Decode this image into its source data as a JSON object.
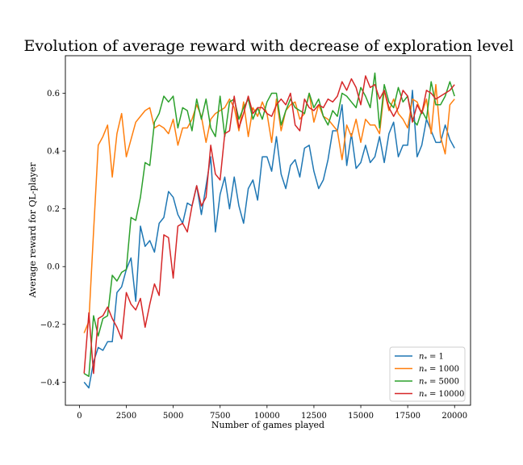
{
  "chart_data": {
    "type": "line",
    "title": "Evolution of average reward with decrease of exploration level",
    "xlabel": "Number of games played",
    "ylabel": "Average reward for QL-player",
    "xlim": [
      -750,
      20850
    ],
    "ylim": [
      -0.48,
      0.73
    ],
    "xticks": [
      0,
      2500,
      5000,
      7500,
      10000,
      12500,
      15000,
      17500,
      20000
    ],
    "xtick_labels": [
      "0",
      "2500",
      "5000",
      "7500",
      "10000",
      "12500",
      "15000",
      "17500",
      "20000"
    ],
    "yticks": [
      -0.4,
      -0.2,
      0.0,
      0.2,
      0.4,
      0.6
    ],
    "ytick_labels": [
      "−0.4",
      "−0.2",
      "0.0",
      "0.2",
      "0.4",
      "0.6"
    ],
    "grid": false,
    "legend_position": "lower right",
    "x": [
      250,
      500,
      750,
      1000,
      1250,
      1500,
      1750,
      2000,
      2250,
      2500,
      2750,
      3000,
      3250,
      3500,
      3750,
      4000,
      4250,
      4500,
      4750,
      5000,
      5250,
      5500,
      5750,
      6000,
      6250,
      6500,
      6750,
      7000,
      7250,
      7500,
      7750,
      8000,
      8250,
      8500,
      8750,
      9000,
      9250,
      9500,
      9750,
      10000,
      10250,
      10500,
      10750,
      11000,
      11250,
      11500,
      11750,
      12000,
      12250,
      12500,
      12750,
      13000,
      13250,
      13500,
      13750,
      14000,
      14250,
      14500,
      14750,
      15000,
      15250,
      15500,
      15750,
      16000,
      16250,
      16500,
      16750,
      17000,
      17250,
      17500,
      17750,
      18000,
      18250,
      18500,
      18750,
      19000,
      19250,
      19500,
      19750,
      20000
    ],
    "series": [
      {
        "name": "n_* = 1",
        "color": "#1f77b4",
        "values": [
          -0.4,
          -0.42,
          -0.33,
          -0.28,
          -0.29,
          -0.26,
          -0.26,
          -0.09,
          -0.07,
          -0.01,
          0.03,
          -0.12,
          0.14,
          0.07,
          0.09,
          0.05,
          0.15,
          0.17,
          0.26,
          0.24,
          0.18,
          0.15,
          0.22,
          0.21,
          0.28,
          0.18,
          0.28,
          0.38,
          0.12,
          0.25,
          0.31,
          0.2,
          0.31,
          0.21,
          0.15,
          0.27,
          0.3,
          0.23,
          0.38,
          0.38,
          0.33,
          0.45,
          0.32,
          0.27,
          0.35,
          0.37,
          0.31,
          0.41,
          0.42,
          0.33,
          0.27,
          0.3,
          0.37,
          0.47,
          0.47,
          0.56,
          0.35,
          0.46,
          0.34,
          0.36,
          0.42,
          0.36,
          0.38,
          0.45,
          0.36,
          0.46,
          0.5,
          0.38,
          0.42,
          0.42,
          0.61,
          0.38,
          0.42,
          0.51,
          0.47,
          0.43,
          0.43,
          0.49,
          0.44,
          0.41
        ]
      },
      {
        "name": "n_* = 1000",
        "color": "#ff7f0e",
        "values": [
          -0.23,
          -0.19,
          0.12,
          0.42,
          0.45,
          0.49,
          0.31,
          0.46,
          0.53,
          0.38,
          0.44,
          0.5,
          0.52,
          0.54,
          0.55,
          0.48,
          0.49,
          0.48,
          0.46,
          0.51,
          0.42,
          0.48,
          0.48,
          0.51,
          0.56,
          0.52,
          0.43,
          0.51,
          0.53,
          0.54,
          0.55,
          0.58,
          0.55,
          0.47,
          0.57,
          0.45,
          0.55,
          0.52,
          0.57,
          0.53,
          0.43,
          0.58,
          0.47,
          0.54,
          0.56,
          0.57,
          0.51,
          0.53,
          0.6,
          0.5,
          0.56,
          0.52,
          0.51,
          0.49,
          0.47,
          0.37,
          0.49,
          0.45,
          0.51,
          0.43,
          0.51,
          0.49,
          0.49,
          0.46,
          0.61,
          0.54,
          0.58,
          0.53,
          0.51,
          0.48,
          0.58,
          0.57,
          0.53,
          0.58,
          0.46,
          0.63,
          0.45,
          0.39,
          0.56,
          0.58
        ]
      },
      {
        "name": "n_* = 5000",
        "color": "#2ca02c",
        "values": [
          -0.37,
          -0.38,
          -0.17,
          -0.24,
          -0.18,
          -0.17,
          -0.03,
          -0.05,
          -0.02,
          -0.01,
          0.17,
          0.16,
          0.24,
          0.36,
          0.35,
          0.5,
          0.53,
          0.59,
          0.57,
          0.59,
          0.48,
          0.55,
          0.54,
          0.47,
          0.58,
          0.51,
          0.58,
          0.48,
          0.45,
          0.59,
          0.45,
          0.57,
          0.58,
          0.51,
          0.55,
          0.58,
          0.51,
          0.55,
          0.51,
          0.57,
          0.6,
          0.6,
          0.49,
          0.54,
          0.58,
          0.55,
          0.54,
          0.53,
          0.6,
          0.55,
          0.58,
          0.52,
          0.49,
          0.54,
          0.52,
          0.6,
          0.59,
          0.57,
          0.55,
          0.62,
          0.59,
          0.55,
          0.67,
          0.48,
          0.63,
          0.57,
          0.55,
          0.62,
          0.57,
          0.59,
          0.51,
          0.49,
          0.54,
          0.51,
          0.64,
          0.56,
          0.56,
          0.59,
          0.64,
          0.59
        ]
      },
      {
        "name": "n_* = 10000",
        "color": "#d62728",
        "values": [
          -0.37,
          -0.16,
          -0.37,
          -0.18,
          -0.17,
          -0.14,
          -0.18,
          -0.21,
          -0.25,
          -0.09,
          -0.13,
          -0.15,
          -0.11,
          -0.21,
          -0.13,
          -0.06,
          -0.1,
          0.11,
          0.1,
          -0.04,
          0.14,
          0.15,
          0.12,
          0.21,
          0.28,
          0.21,
          0.24,
          0.42,
          0.32,
          0.3,
          0.46,
          0.47,
          0.59,
          0.48,
          0.53,
          0.59,
          0.53,
          0.55,
          0.55,
          0.53,
          0.52,
          0.56,
          0.58,
          0.56,
          0.6,
          0.49,
          0.47,
          0.58,
          0.55,
          0.54,
          0.56,
          0.55,
          0.58,
          0.57,
          0.59,
          0.64,
          0.61,
          0.65,
          0.62,
          0.56,
          0.66,
          0.62,
          0.63,
          0.58,
          0.61,
          0.55,
          0.52,
          0.55,
          0.61,
          0.59,
          0.5,
          0.56,
          0.53,
          0.61,
          0.6,
          0.58,
          0.59,
          0.6,
          0.61,
          0.63
        ]
      }
    ],
    "legend_labels": [
      "n",
      "n",
      "n",
      "n"
    ],
    "legend_values": [
      "= 1",
      "= 1000",
      "= 5000",
      "= 10000"
    ]
  }
}
